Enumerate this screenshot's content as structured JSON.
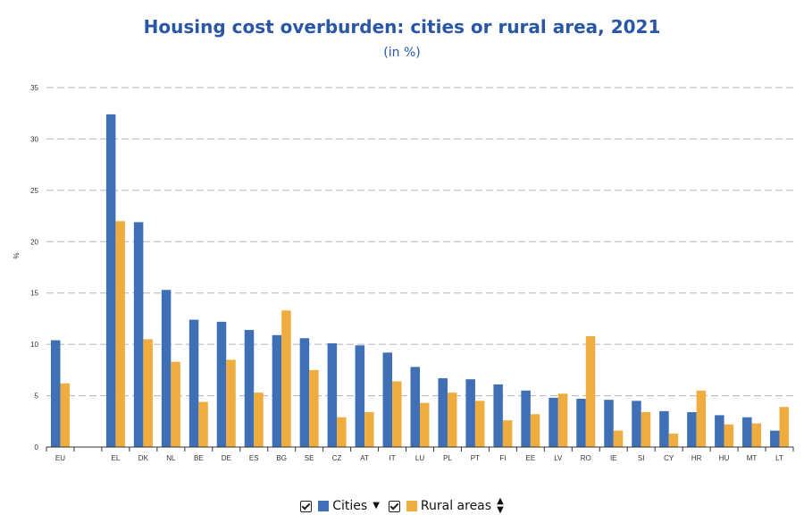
{
  "title": "Housing cost overburden: cities or rural area, 2021",
  "subtitle": "(in %)",
  "colors": {
    "title": "#2956a5",
    "cities": "#3f6fb5",
    "rural": "#f0ad3f",
    "grid": "#b5b5b5"
  },
  "legend": {
    "cities_label": "Cities",
    "rural_label": "Rural areas",
    "cities_sort_icon": "caret-down-icon",
    "rural_sort_icon": "sort-up-down-icon"
  },
  "chart_data": {
    "type": "bar",
    "title": "Housing cost overburden: cities or rural area, 2021",
    "subtitle": "(in %)",
    "ylabel": "%",
    "ylim": [
      0,
      35
    ],
    "yticks": [
      0,
      5,
      10,
      15,
      20,
      25,
      30,
      35
    ],
    "grid": true,
    "legend_position": "bottom",
    "categories": [
      "EU",
      "",
      "EL",
      "DK",
      "NL",
      "BE",
      "DE",
      "ES",
      "BG",
      "SE",
      "CZ",
      "AT",
      "IT",
      "LU",
      "PL",
      "PT",
      "FI",
      "EE",
      "LV",
      "RO",
      "IE",
      "SI",
      "CY",
      "HR",
      "HU",
      "MT",
      "LT"
    ],
    "series": [
      {
        "name": "Cities",
        "values": [
          10.4,
          null,
          32.4,
          21.9,
          15.3,
          12.4,
          12.2,
          11.4,
          10.9,
          10.6,
          10.1,
          9.9,
          9.2,
          7.8,
          6.7,
          6.6,
          6.1,
          5.5,
          4.8,
          4.7,
          4.6,
          4.5,
          3.5,
          3.4,
          3.1,
          2.9,
          1.6
        ]
      },
      {
        "name": "Rural areas",
        "values": [
          6.2,
          null,
          22.0,
          10.5,
          8.3,
          4.4,
          8.5,
          5.3,
          13.3,
          7.5,
          2.9,
          3.4,
          6.4,
          4.3,
          5.3,
          4.5,
          2.6,
          3.2,
          5.2,
          10.8,
          1.6,
          3.4,
          1.3,
          5.5,
          2.2,
          2.3,
          3.9
        ]
      }
    ]
  }
}
